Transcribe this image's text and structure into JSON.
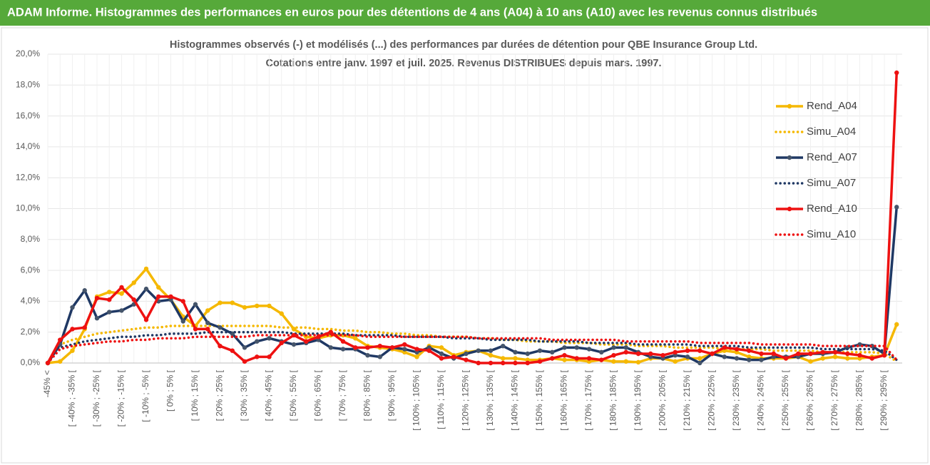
{
  "chart_data": {
    "type": "line",
    "title": "ADAM Informe. Histogrammes des performances en euros pour des détentions de 4 ans (A04) à 10 ans (A10) avec les revenus connus distribués",
    "subtitle": [
      "Histogrammes observés (-) et modélisés (...) des performances par durées de détention pour QBE Insurance Group Ltd.",
      "Cotations entre janv. 1997 et juil. 2025. Revenus DISTRIBUES depuis mars. 1997."
    ],
    "categories": [
      "-45% <",
      null,
      "[ -40% ; -35% [",
      null,
      "[ -30% ; -25% [",
      null,
      "[ -20% ; -15% [",
      null,
      "[ -10% ; -5% [",
      null,
      "[ 0% ; 5% [",
      null,
      "[ 10% ; 15% [",
      null,
      "[ 20% ; 25% [",
      null,
      "[ 30% ; 35% [",
      null,
      "[ 40% ; 45% [",
      null,
      "[ 50% ; 55% [",
      null,
      "[ 60% ; 65% [",
      null,
      "[ 70% ; 75% [",
      null,
      "[ 80% ; 85% [",
      null,
      "[ 90% ; 95% [",
      null,
      "[ 100% ; 105% [",
      null,
      "[ 110% ; 115% [",
      null,
      "[ 120% ; 125% [",
      null,
      "[ 130% ; 135% [",
      null,
      "[ 140% ; 145% [",
      null,
      "[ 150% ; 155% [",
      null,
      "[ 160% ; 165% [",
      null,
      "[ 170% ; 175% [",
      null,
      "[ 180% ; 185% [",
      null,
      "[ 190% ; 195% [",
      null,
      "[ 200% ; 205% [",
      null,
      "[ 210% ; 215% [",
      null,
      "[ 220% ; 225% [",
      null,
      "[ 230% ; 235% [",
      null,
      "[ 240% ; 245% [",
      null,
      "[ 250% ; 255% [",
      null,
      "[ 260% ; 265% [",
      null,
      "[ 270% ; 275% [",
      null,
      "[ 280% ; 285% [",
      null,
      "[ 290% ; 295% [",
      null
    ],
    "series": [
      {
        "name": "Rend_A04",
        "color": "#f5b800",
        "style": "solid",
        "marker": true,
        "values": [
          0,
          0.1,
          0.8,
          2.2,
          4.3,
          4.6,
          4.5,
          5.2,
          6.1,
          4.9,
          4.1,
          3.0,
          2.4,
          3.4,
          3.9,
          3.9,
          3.6,
          3.7,
          3.7,
          3.2,
          2.2,
          1.7,
          1.6,
          1.8,
          1.8,
          1.6,
          1.1,
          1.0,
          0.9,
          0.7,
          0.4,
          1.1,
          1.0,
          0.5,
          0.7,
          0.8,
          0.5,
          0.3,
          0.3,
          0.2,
          0.2,
          0.3,
          0.2,
          0.2,
          0.1,
          0.2,
          0.1,
          0.1,
          0.05,
          0.3,
          0.3,
          0.1,
          0.3,
          0.3,
          0.6,
          0.8,
          0.7,
          0.4,
          0.3,
          0.3,
          0.3,
          0.4,
          0.1,
          0.3,
          0.4,
          0.3,
          0.3,
          0.4,
          0.5,
          2.5
        ]
      },
      {
        "name": "Simu_A04",
        "color": "#f5b800",
        "style": "dotted",
        "marker": false,
        "values": [
          0,
          1.2,
          1.5,
          1.7,
          1.9,
          2.0,
          2.1,
          2.2,
          2.3,
          2.3,
          2.4,
          2.4,
          2.4,
          2.4,
          2.4,
          2.4,
          2.4,
          2.4,
          2.4,
          2.3,
          2.3,
          2.3,
          2.2,
          2.2,
          2.1,
          2.1,
          2.0,
          2.0,
          1.9,
          1.9,
          1.8,
          1.8,
          1.7,
          1.7,
          1.7,
          1.6,
          1.6,
          1.5,
          1.5,
          1.4,
          1.4,
          1.4,
          1.3,
          1.3,
          1.3,
          1.2,
          1.2,
          1.2,
          1.1,
          1.1,
          1.1,
          1.0,
          1.0,
          1.0,
          1.0,
          0.9,
          0.9,
          0.9,
          0.9,
          0.8,
          0.8,
          0.8,
          0.8,
          0.7,
          0.7,
          0.7,
          0.7,
          0.7,
          0.6,
          0.1
        ]
      },
      {
        "name": "Rend_A07",
        "color": "#1f3864",
        "style": "solid",
        "marker": true,
        "values": [
          0,
          1.2,
          3.6,
          4.7,
          2.9,
          3.3,
          3.4,
          3.8,
          4.8,
          4.0,
          4.1,
          2.7,
          3.8,
          2.6,
          2.3,
          1.9,
          1.0,
          1.4,
          1.6,
          1.4,
          1.2,
          1.3,
          1.5,
          1.0,
          0.9,
          0.9,
          0.5,
          0.4,
          1.0,
          0.9,
          0.7,
          1.0,
          0.6,
          0.3,
          0.6,
          0.8,
          0.8,
          1.1,
          0.7,
          0.6,
          0.8,
          0.7,
          1.0,
          1.0,
          0.9,
          0.7,
          1.0,
          1.0,
          0.7,
          0.4,
          0.3,
          0.5,
          0.4,
          0.0,
          0.6,
          0.4,
          0.3,
          0.2,
          0.2,
          0.4,
          0.4,
          0.4,
          0.6,
          0.6,
          0.7,
          1.0,
          1.2,
          1.1,
          0.6,
          10.1
        ]
      },
      {
        "name": "Simu_A07",
        "color": "#1f3864",
        "style": "dotted",
        "marker": false,
        "values": [
          0,
          1.0,
          1.2,
          1.4,
          1.5,
          1.6,
          1.7,
          1.7,
          1.8,
          1.8,
          1.9,
          1.9,
          1.9,
          2.0,
          2.0,
          2.0,
          2.0,
          2.0,
          2.0,
          2.0,
          1.9,
          1.9,
          1.9,
          1.9,
          1.9,
          1.8,
          1.8,
          1.8,
          1.8,
          1.7,
          1.7,
          1.7,
          1.7,
          1.6,
          1.6,
          1.6,
          1.5,
          1.5,
          1.5,
          1.5,
          1.4,
          1.4,
          1.4,
          1.4,
          1.3,
          1.3,
          1.3,
          1.3,
          1.2,
          1.2,
          1.2,
          1.2,
          1.2,
          1.1,
          1.1,
          1.1,
          1.1,
          1.0,
          1.0,
          1.0,
          1.0,
          1.0,
          1.0,
          0.9,
          0.9,
          0.9,
          0.9,
          0.9,
          0.8,
          0.2
        ]
      },
      {
        "name": "Rend_A10",
        "color": "#ee1111",
        "style": "solid",
        "marker": true,
        "values": [
          0,
          1.5,
          2.2,
          2.3,
          4.2,
          4.1,
          4.9,
          4.1,
          2.8,
          4.3,
          4.3,
          4.0,
          2.2,
          2.2,
          1.1,
          0.8,
          0.1,
          0.4,
          0.4,
          1.3,
          1.8,
          1.4,
          1.7,
          2.0,
          1.4,
          1.0,
          1.0,
          1.1,
          1.0,
          1.2,
          0.9,
          0.8,
          0.3,
          0.4,
          0.2,
          0.0,
          0.0,
          0.0,
          0.0,
          0.0,
          0.1,
          0.3,
          0.5,
          0.3,
          0.3,
          0.2,
          0.5,
          0.7,
          0.6,
          0.6,
          0.5,
          0.7,
          0.8,
          0.8,
          0.6,
          1.0,
          0.9,
          0.8,
          0.6,
          0.6,
          0.3,
          0.6,
          0.6,
          0.7,
          0.7,
          0.6,
          0.5,
          0.3,
          0.5,
          18.8
        ]
      },
      {
        "name": "Simu_A10",
        "color": "#ee1111",
        "style": "dotted",
        "marker": false,
        "values": [
          0,
          0.9,
          1.1,
          1.2,
          1.3,
          1.4,
          1.4,
          1.5,
          1.5,
          1.6,
          1.6,
          1.6,
          1.7,
          1.7,
          1.7,
          1.7,
          1.7,
          1.8,
          1.8,
          1.8,
          1.8,
          1.8,
          1.8,
          1.8,
          1.8,
          1.8,
          1.7,
          1.7,
          1.7,
          1.7,
          1.7,
          1.7,
          1.7,
          1.7,
          1.7,
          1.6,
          1.6,
          1.6,
          1.6,
          1.6,
          1.6,
          1.5,
          1.5,
          1.5,
          1.5,
          1.5,
          1.5,
          1.4,
          1.4,
          1.4,
          1.4,
          1.4,
          1.4,
          1.3,
          1.3,
          1.3,
          1.3,
          1.3,
          1.2,
          1.2,
          1.2,
          1.2,
          1.2,
          1.1,
          1.1,
          1.1,
          1.1,
          1.1,
          1.1,
          0.2
        ]
      }
    ],
    "ylim": [
      0,
      20
    ],
    "yticks": [
      {
        "value": 0,
        "label": "0,0%"
      },
      {
        "value": 2,
        "label": "2,0%"
      },
      {
        "value": 4,
        "label": "4,0%"
      },
      {
        "value": 6,
        "label": "6,0%"
      },
      {
        "value": 8,
        "label": "8,0%"
      },
      {
        "value": 10,
        "label": "10,0%"
      },
      {
        "value": 12,
        "label": "12,0%"
      },
      {
        "value": 14,
        "label": "14,0%"
      },
      {
        "value": 16,
        "label": "16,0%"
      },
      {
        "value": 18,
        "label": "18,0%"
      },
      {
        "value": 20,
        "label": "20,0%"
      }
    ],
    "grid": true,
    "legend": "upper right"
  }
}
